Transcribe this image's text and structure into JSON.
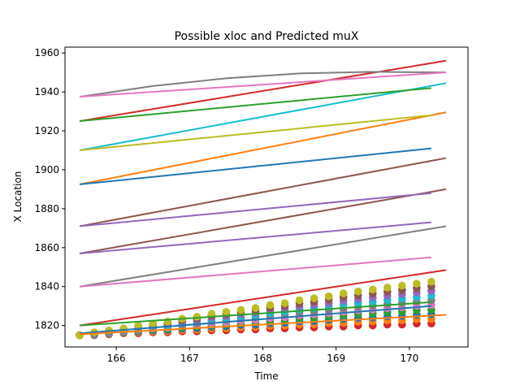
{
  "chart_data": {
    "type": "line",
    "title": "Possible xloc and Predicted muX",
    "xlabel": "Time",
    "ylabel": "X Location",
    "xlim": [
      165.3,
      170.8
    ],
    "ylim": [
      1809,
      1963
    ],
    "xticks": [
      166,
      167,
      168,
      169,
      170
    ],
    "yticks": [
      1820,
      1840,
      1860,
      1880,
      1900,
      1920,
      1940,
      1960
    ],
    "grid": false,
    "legend": "none",
    "series": [
      {
        "color": "#8c564b",
        "x": [
          165.5,
          170.5
        ],
        "y": [
          1871,
          1906
        ]
      },
      {
        "color": "#8c564b",
        "x": [
          165.5,
          170.5
        ],
        "y": [
          1857,
          1890
        ]
      },
      {
        "color": "#7f7f7f",
        "x": [
          165.5,
          170.5
        ],
        "y": [
          1840,
          1871
        ]
      },
      {
        "color": "#d62728",
        "x": [
          165.5,
          170.5
        ],
        "y": [
          1820,
          1848.5
        ]
      },
      {
        "color": "#d62728",
        "x": [
          165.5,
          170.5
        ],
        "y": [
          1925,
          1956
        ]
      },
      {
        "color": "#17becf",
        "x": [
          165.5,
          170.5
        ],
        "y": [
          1910,
          1944.5
        ]
      },
      {
        "color": "#ff7f0e",
        "x": [
          165.5,
          170.5
        ],
        "y": [
          1892.5,
          1929.5
        ]
      },
      {
        "color": "#7f7f7f",
        "x": [
          165.5,
          166.5,
          167.5,
          168.5,
          169.5,
          170.5
        ],
        "y": [
          1937.5,
          1943,
          1947,
          1949.5,
          1950.3,
          1950
        ]
      },
      {
        "color": "#e377c2",
        "x": [
          165.5,
          170.5
        ],
        "y": [
          1937.5,
          1950
        ]
      },
      {
        "color": "#2ca02c",
        "x": [
          165.5,
          170.3
        ],
        "y": [
          1925,
          1942
        ]
      },
      {
        "color": "#bcbd22",
        "x": [
          165.5,
          170.3
        ],
        "y": [
          1910,
          1928
        ]
      },
      {
        "color": "#1f77b4",
        "x": [
          165.5,
          170.3
        ],
        "y": [
          1892.5,
          1911
        ]
      },
      {
        "color": "#9467bd",
        "x": [
          165.5,
          170.3
        ],
        "y": [
          1871,
          1888
        ]
      },
      {
        "color": "#9467bd",
        "x": [
          165.5,
          170.3
        ],
        "y": [
          1857,
          1873
        ]
      },
      {
        "color": "#e377c2",
        "x": [
          165.5,
          170.3
        ],
        "y": [
          1840,
          1855
        ]
      },
      {
        "color": "#2ca02c",
        "x": [
          165.5,
          170.3
        ],
        "y": [
          1820,
          1832
        ]
      },
      {
        "color": "#1f77b4",
        "x": [
          165.5,
          170.3
        ],
        "y": [
          1816,
          1830
        ]
      },
      {
        "color": "#ff7f0e",
        "x": [
          165.5,
          170.5
        ],
        "y": [
          1815.5,
          1825.5
        ]
      }
    ],
    "scatter": {
      "x": [
        165.5,
        165.7,
        165.9,
        166.1,
        166.3,
        166.5,
        166.7,
        166.9,
        167.1,
        167.3,
        167.5,
        167.7,
        167.9,
        168.1,
        168.3,
        168.5,
        168.7,
        168.9,
        169.1,
        169.3,
        169.5,
        169.7,
        169.9,
        170.1,
        170.3
      ],
      "low": [
        1815,
        1815,
        1815.5,
        1816,
        1816,
        1816.5,
        1816.5,
        1817,
        1817,
        1817.5,
        1817.5,
        1818,
        1818,
        1818.5,
        1818.5,
        1819,
        1819,
        1819.5,
        1819.5,
        1820,
        1820,
        1820.5,
        1820.5,
        1821,
        1821
      ],
      "high": [
        1815,
        1816.5,
        1817.5,
        1818.5,
        1820,
        1821,
        1822,
        1823.5,
        1824.5,
        1826,
        1827,
        1828,
        1829,
        1830.5,
        1831.5,
        1833,
        1834,
        1835,
        1836.5,
        1837.5,
        1838.5,
        1839.5,
        1840.5,
        1841.5,
        1842.5
      ],
      "colors": [
        "#d62728",
        "#ff7f0e",
        "#1f77b4",
        "#2ca02c",
        "#e377c2",
        "#7f7f7f",
        "#17becf",
        "#9467bd",
        "#8c564b",
        "#bcbd22"
      ]
    }
  }
}
